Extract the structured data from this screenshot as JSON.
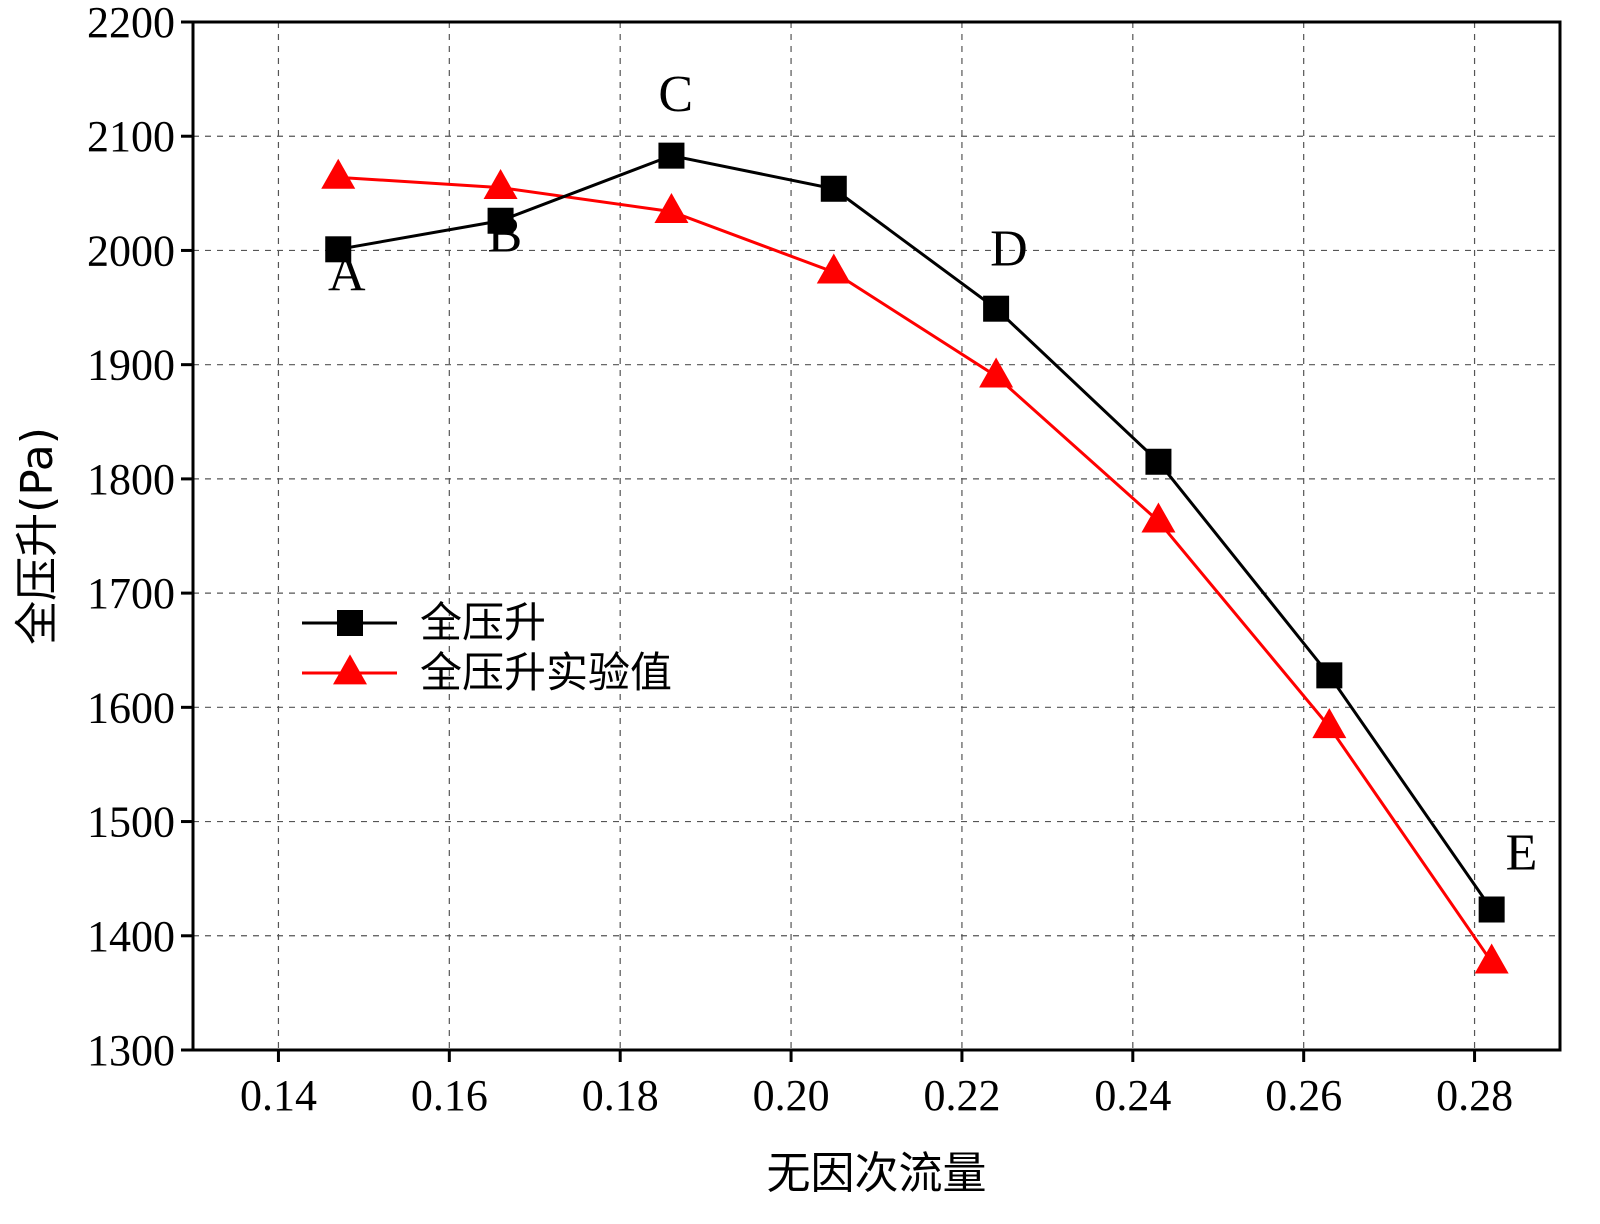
{
  "chart_data": {
    "type": "line",
    "title": "",
    "xlabel": "无因次流量",
    "ylabel": "全压升(Pa)",
    "xlim": [
      0.13,
      0.29
    ],
    "ylim": [
      1300,
      2200
    ],
    "x_ticks": [
      "0.14",
      "0.16",
      "0.18",
      "0.20",
      "0.22",
      "0.24",
      "0.26",
      "0.28"
    ],
    "y_ticks": [
      "1300",
      "1400",
      "1500",
      "1600",
      "1700",
      "1800",
      "1900",
      "2000",
      "2100",
      "2200"
    ],
    "grid": true,
    "legend_position": "center-left",
    "series": [
      {
        "name": "全压升",
        "color": "#000000",
        "marker": "square",
        "x": [
          0.147,
          0.166,
          0.186,
          0.205,
          0.224,
          0.243,
          0.263,
          0.282
        ],
        "y": [
          2001,
          2026,
          2083,
          2054,
          1949,
          1815,
          1628,
          1423
        ]
      },
      {
        "name": "全压升实验值",
        "color": "#ff0000",
        "marker": "triangle",
        "x": [
          0.147,
          0.166,
          0.186,
          0.205,
          0.224,
          0.243,
          0.263,
          0.282
        ],
        "y": [
          2064,
          2055,
          2034,
          1981,
          1890,
          1763,
          1583,
          1377
        ]
      }
    ],
    "annotations": [
      {
        "text": "A",
        "x": 0.148,
        "y": 1965
      },
      {
        "text": "B",
        "x": 0.1665,
        "y": 1999
      },
      {
        "text": "C",
        "x": 0.1865,
        "y": 2122
      },
      {
        "text": "D",
        "x": 0.2255,
        "y": 1987
      },
      {
        "text": "E",
        "x": 0.2855,
        "y": 1458
      }
    ]
  }
}
